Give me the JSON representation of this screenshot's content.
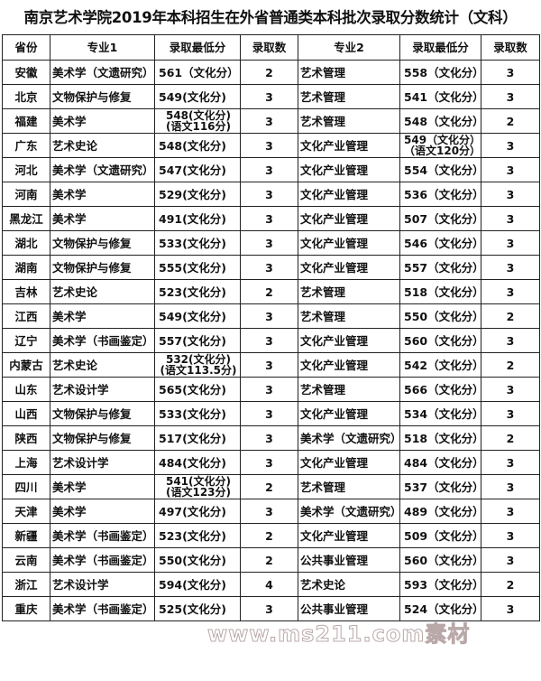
{
  "title": "南京艺术学院2019年本科招生在外省普通类本科批次录取分数统计（文科）",
  "headers": [
    "省份",
    "专业1",
    "录取最低分",
    "录取数",
    "专业2",
    "录取最低分",
    "录取数"
  ],
  "rows": [
    [
      "安徽",
      "美术学（文遗研究）",
      "561（文化分）",
      "2",
      "艺术管理",
      "558（文化分）",
      "3"
    ],
    [
      "北京",
      "文物保护与修复",
      "549(文化分)",
      "3",
      "艺术管理",
      "541（文化分）",
      "3"
    ],
    [
      "福建",
      "美术学",
      "548(文化分)\n(语文116分)",
      "3",
      "艺术管理",
      "548（文化分）",
      "2"
    ],
    [
      "广东",
      "艺术史论",
      "548(文化分)",
      "3",
      "文化产业管理",
      "549（文化分）\n（语文120分）",
      "3"
    ],
    [
      "河北",
      "美术学（文遗研究）",
      "547(文化分)",
      "3",
      "文化产业管理",
      "554（文化分）",
      "3"
    ],
    [
      "河南",
      "美术学",
      "529(文化分)",
      "3",
      "文化产业管理",
      "536（文化分）",
      "3"
    ],
    [
      "黑龙江",
      "美术学",
      "491(文化分)",
      "3",
      "文化产业管理",
      "507（文化分）",
      "3"
    ],
    [
      "湖北",
      "文物保护与修复",
      "533(文化分)",
      "3",
      "文化产业管理",
      "546（文化分）",
      "3"
    ],
    [
      "湖南",
      "文物保护与修复",
      "555(文化分)",
      "3",
      "文化产业管理",
      "557（文化分）",
      "3"
    ],
    [
      "吉林",
      "艺术史论",
      "523(文化分)",
      "2",
      "艺术管理",
      "518（文化分）",
      "3"
    ],
    [
      "江西",
      "美术学",
      "549(文化分)",
      "3",
      "艺术管理",
      "550（文化分）",
      "2"
    ],
    [
      "辽宁",
      "美术学（书画鉴定）",
      "557(文化分)",
      "3",
      "文化产业管理",
      "560（文化分）",
      "3"
    ],
    [
      "内蒙古",
      "艺术史论",
      "532(文化分)\n(语文113.5分)",
      "3",
      "文化产业管理",
      "542（文化分）",
      "2"
    ],
    [
      "山东",
      "艺术设计学",
      "565(文化分)",
      "3",
      "艺术管理",
      "566（文化分）",
      "3"
    ],
    [
      "山西",
      "文物保护与修复",
      "533(文化分)",
      "3",
      "文化产业管理",
      "534（文化分）",
      "3"
    ],
    [
      "陕西",
      "文物保护与修复",
      "517(文化分)",
      "3",
      "美术学（文遗研究）",
      "518（文化分）",
      "2"
    ],
    [
      "上海",
      "艺术设计学",
      "484(文化分)",
      "3",
      "文化产业管理",
      "484（文化分）",
      "3"
    ],
    [
      "四川",
      "美术学",
      "541(文化分)\n(语文123分)",
      "2",
      "艺术管理",
      "537（文化分）",
      "3"
    ],
    [
      "天津",
      "美术学",
      "497(文化分)",
      "3",
      "美术学（文遗研究）",
      "489（文化分）",
      "3"
    ],
    [
      "新疆",
      "美术学（书画鉴定）",
      "523(文化分)",
      "2",
      "文化产业管理",
      "509（文化分）",
      "3"
    ],
    [
      "云南",
      "美术学（书画鉴定）",
      "550(文化分)",
      "2",
      "公共事业管理",
      "560（文化分）",
      "3"
    ],
    [
      "浙江",
      "艺术设计学",
      "594(文化分)",
      "4",
      "艺术史论",
      "593（文化分）",
      "2"
    ],
    [
      "重庆",
      "美术学（书画鉴定）",
      "525(文化分)",
      "3",
      "公共事业管理",
      "524（文化分）",
      "3"
    ]
  ],
  "watermark": "www.ms211.com素材"
}
